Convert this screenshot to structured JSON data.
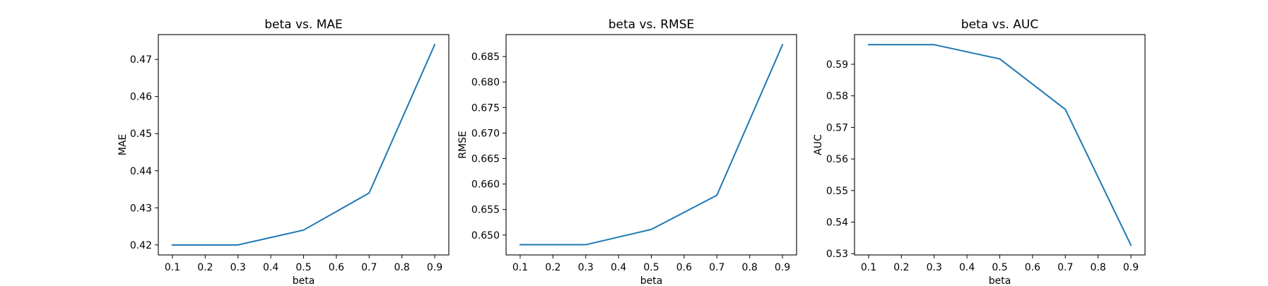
{
  "chart_data": [
    {
      "type": "line",
      "title": "beta vs. MAE",
      "xlabel": "beta",
      "ylabel": "MAE",
      "x": [
        0.1,
        0.3,
        0.5,
        0.7,
        0.9
      ],
      "values": [
        0.42,
        0.42,
        0.424,
        0.434,
        0.474
      ],
      "xlim": [
        0.057,
        0.943
      ],
      "ylim": [
        0.4173,
        0.4767
      ],
      "xticks": [
        "0.1",
        "0.2",
        "0.3",
        "0.4",
        "0.5",
        "0.6",
        "0.7",
        "0.8",
        "0.9"
      ],
      "yticks": [
        "0.42",
        "0.43",
        "0.44",
        "0.45",
        "0.46",
        "0.47"
      ],
      "line_color": "#1f77b4",
      "grid": false
    },
    {
      "type": "line",
      "title": "beta vs. RMSE",
      "xlabel": "beta",
      "ylabel": "RMSE",
      "x": [
        0.1,
        0.3,
        0.5,
        0.7,
        0.9
      ],
      "values": [
        0.6481,
        0.6481,
        0.6511,
        0.6578,
        0.6873
      ],
      "xlim": [
        0.057,
        0.943
      ],
      "ylim": [
        0.6461,
        0.6893
      ],
      "xticks": [
        "0.1",
        "0.2",
        "0.3",
        "0.4",
        "0.5",
        "0.6",
        "0.7",
        "0.8",
        "0.9"
      ],
      "yticks": [
        "0.650",
        "0.655",
        "0.660",
        "0.665",
        "0.670",
        "0.675",
        "0.680",
        "0.685"
      ],
      "line_color": "#1f77b4",
      "grid": false
    },
    {
      "type": "line",
      "title": "beta vs. AUC",
      "xlabel": "beta",
      "ylabel": "AUC",
      "x": [
        0.1,
        0.3,
        0.5,
        0.7,
        0.9
      ],
      "values": [
        0.5962,
        0.5962,
        0.5917,
        0.5757,
        0.5327
      ],
      "xlim": [
        0.057,
        0.943
      ],
      "ylim": [
        0.5296,
        0.5994
      ],
      "xticks": [
        "0.1",
        "0.2",
        "0.3",
        "0.4",
        "0.5",
        "0.6",
        "0.7",
        "0.8",
        "0.9"
      ],
      "yticks": [
        "0.53",
        "0.54",
        "0.55",
        "0.56",
        "0.57",
        "0.58",
        "0.59"
      ],
      "line_color": "#1f77b4",
      "grid": false
    }
  ]
}
